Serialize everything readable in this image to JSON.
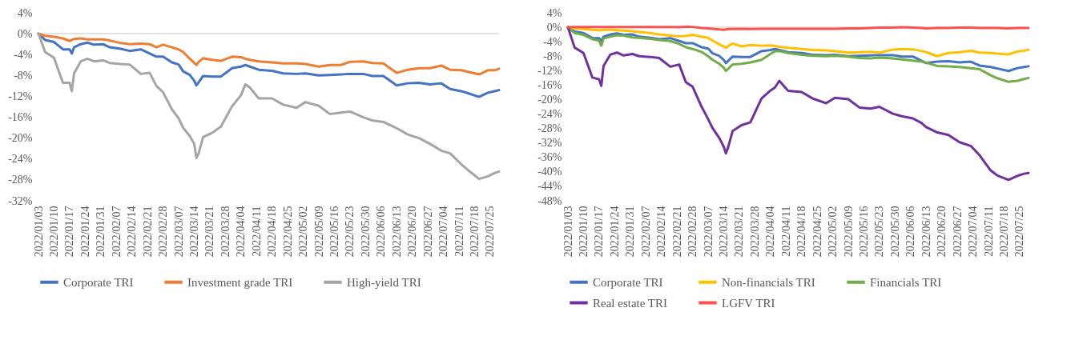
{
  "chart_data": [
    {
      "type": "line",
      "x": [
        "2022-01-03",
        "2022-01-06",
        "2022-01-10",
        "2022-01-14",
        "2022-01-17",
        "2022-01-18",
        "2022-01-19",
        "2022-01-22",
        "2022-01-25",
        "2022-01-28",
        "2022-02-01",
        "2022-02-04",
        "2022-02-09",
        "2022-02-13",
        "2022-02-18",
        "2022-02-22",
        "2022-02-25",
        "2022-02-28",
        "2022-03-04",
        "2022-03-07",
        "2022-03-09",
        "2022-03-12",
        "2022-03-14",
        "2022-03-15",
        "2022-03-16",
        "2022-03-18",
        "2022-03-22",
        "2022-03-26",
        "2022-03-31",
        "2022-04-04",
        "2022-04-06",
        "2022-04-08",
        "2022-04-12",
        "2022-04-18",
        "2022-04-23",
        "2022-04-29",
        "2022-05-03",
        "2022-05-09",
        "2022-05-14",
        "2022-05-19",
        "2022-05-23",
        "2022-05-29",
        "2022-06-02",
        "2022-06-07",
        "2022-06-11",
        "2022-06-13",
        "2022-06-18",
        "2022-06-23",
        "2022-06-28",
        "2022-07-03",
        "2022-07-07",
        "2022-07-12",
        "2022-07-15",
        "2022-07-20",
        "2022-07-24",
        "2022-07-27",
        "2022-07-29"
      ],
      "xlim": [
        "2022-01-03",
        "2022-07-29"
      ],
      "xticks": [
        {
          "value": "2022-01-03",
          "label": "2022/01/03"
        },
        {
          "value": "2022-01-10",
          "label": "2022/01/10"
        },
        {
          "value": "2022-01-17",
          "label": "2022/01/17"
        },
        {
          "value": "2022-01-24",
          "label": "2022/01/24"
        },
        {
          "value": "2022-01-31",
          "label": "2022/01/31"
        },
        {
          "value": "2022-02-07",
          "label": "2022/02/07"
        },
        {
          "value": "2022-02-14",
          "label": "2022/02/14"
        },
        {
          "value": "2022-02-21",
          "label": "2022/02/21"
        },
        {
          "value": "2022-02-28",
          "label": "2022/02/28"
        },
        {
          "value": "2022-03-07",
          "label": "2022/03/07"
        },
        {
          "value": "2022-03-14",
          "label": "2022/03/14"
        },
        {
          "value": "2022-03-21",
          "label": "2022/03/21"
        },
        {
          "value": "2022-03-28",
          "label": "2022/03/28"
        },
        {
          "value": "2022-04-04",
          "label": "2022/04/04"
        },
        {
          "value": "2022-04-11",
          "label": "2022/04/11"
        },
        {
          "value": "2022-04-18",
          "label": "2022/04/18"
        },
        {
          "value": "2022-04-25",
          "label": "2022/04/25"
        },
        {
          "value": "2022-05-02",
          "label": "2022/05/02"
        },
        {
          "value": "2022-05-09",
          "label": "2022/05/09"
        },
        {
          "value": "2022-05-16",
          "label": "2022/05/16"
        },
        {
          "value": "2022-05-23",
          "label": "2022/05/23"
        },
        {
          "value": "2022-05-30",
          "label": "2022/05/30"
        },
        {
          "value": "2022-06-06",
          "label": "2022/06/06"
        },
        {
          "value": "2022-06-13",
          "label": "2022/06/13"
        },
        {
          "value": "2022-06-20",
          "label": "2022/06/20"
        },
        {
          "value": "2022-06-27",
          "label": "2022/06/27"
        },
        {
          "value": "2022-07-04",
          "label": "2022/07/04"
        },
        {
          "value": "2022-07-11",
          "label": "2022/07/11"
        },
        {
          "value": "2022-07-18",
          "label": "2022/07/18"
        },
        {
          "value": "2022-07-25",
          "label": "2022/07/25"
        }
      ],
      "ylim": [
        -32,
        4
      ],
      "yticks": [
        {
          "value": -32,
          "label": "-32%"
        },
        {
          "value": -28,
          "label": "-28%"
        },
        {
          "value": -24,
          "label": "-24%"
        },
        {
          "value": -20,
          "label": "-20%"
        },
        {
          "value": -16,
          "label": "-16%"
        },
        {
          "value": -12,
          "label": "-12%"
        },
        {
          "value": -8,
          "label": "-8%"
        },
        {
          "value": -4,
          "label": "-4%"
        },
        {
          "value": 0,
          "label": "0%"
        },
        {
          "value": 4,
          "label": "4%"
        }
      ],
      "ref_lines": [
        {
          "axis": "y",
          "value": 0,
          "color": "#d9d9d9"
        }
      ],
      "legend": "bottom",
      "grid": false,
      "series": [
        {
          "name": "Corporate TRI",
          "color": "#4472c4",
          "values": [
            0,
            -1.2,
            -1.6,
            -3.0,
            -3.0,
            -3.8,
            -2.6,
            -2.0,
            -1.7,
            -2.1,
            -2.0,
            -2.6,
            -2.9,
            -3.3,
            -3.0,
            -3.8,
            -4.4,
            -4.4,
            -5.5,
            -5.9,
            -7.2,
            -7.9,
            -9.0,
            -9.9,
            -9.3,
            -8.1,
            -8.2,
            -8.2,
            -6.6,
            -6.3,
            -6.0,
            -6.3,
            -6.9,
            -7.1,
            -7.6,
            -7.7,
            -7.6,
            -8.0,
            -7.9,
            -7.8,
            -7.7,
            -7.7,
            -8.1,
            -8.1,
            -9.3,
            -9.9,
            -9.5,
            -9.4,
            -9.7,
            -9.5,
            -10.6,
            -11.0,
            -11.4,
            -12.1,
            -11.3,
            -11.0,
            -10.8
          ]
        },
        {
          "name": "Investment grade TRI",
          "color": "#ed7d31",
          "values": [
            0,
            -0.4,
            -0.6,
            -0.9,
            -1.4,
            -1.2,
            -1.0,
            -0.9,
            -1.1,
            -1.1,
            -1.1,
            -1.3,
            -1.8,
            -2.0,
            -1.9,
            -2.0,
            -2.6,
            -2.1,
            -2.6,
            -3.0,
            -3.5,
            -4.8,
            -5.6,
            -6.0,
            -5.4,
            -4.7,
            -5.0,
            -5.2,
            -4.4,
            -4.5,
            -4.8,
            -5.0,
            -5.3,
            -5.5,
            -5.7,
            -5.7,
            -5.8,
            -6.3,
            -6.0,
            -6.0,
            -5.4,
            -5.3,
            -5.6,
            -5.7,
            -6.9,
            -7.5,
            -6.9,
            -6.6,
            -6.6,
            -6.1,
            -6.9,
            -7.0,
            -7.3,
            -7.8,
            -7.0,
            -7.0,
            -6.7
          ]
        },
        {
          "name": "High-yield TRI",
          "color": "#a5a5a5",
          "values": [
            0,
            -3.5,
            -4.6,
            -9.4,
            -9.4,
            -11.0,
            -7.6,
            -5.3,
            -4.8,
            -5.3,
            -5.1,
            -5.6,
            -5.8,
            -5.9,
            -7.7,
            -7.5,
            -10.0,
            -11.2,
            -14.5,
            -16.2,
            -18.0,
            -19.6,
            -21.1,
            -23.8,
            -22.9,
            -19.8,
            -19.0,
            -17.8,
            -13.9,
            -11.8,
            -9.7,
            -10.3,
            -12.4,
            -12.4,
            -13.6,
            -14.2,
            -13.1,
            -13.8,
            -15.4,
            -15.1,
            -14.9,
            -16.0,
            -16.6,
            -16.9,
            -17.7,
            -18.1,
            -19.3,
            -20.0,
            -21.1,
            -22.4,
            -22.9,
            -25.0,
            -26.1,
            -27.8,
            -27.3,
            -26.7,
            -26.4
          ]
        }
      ]
    },
    {
      "type": "line",
      "x": [
        "2022-01-03",
        "2022-01-06",
        "2022-01-10",
        "2022-01-14",
        "2022-01-17",
        "2022-01-18",
        "2022-01-19",
        "2022-01-22",
        "2022-01-25",
        "2022-01-28",
        "2022-02-01",
        "2022-02-04",
        "2022-02-09",
        "2022-02-13",
        "2022-02-18",
        "2022-02-22",
        "2022-02-25",
        "2022-02-28",
        "2022-03-04",
        "2022-03-07",
        "2022-03-09",
        "2022-03-12",
        "2022-03-14",
        "2022-03-15",
        "2022-03-16",
        "2022-03-18",
        "2022-03-22",
        "2022-03-26",
        "2022-03-31",
        "2022-04-04",
        "2022-04-06",
        "2022-04-08",
        "2022-04-12",
        "2022-04-18",
        "2022-04-23",
        "2022-04-29",
        "2022-05-03",
        "2022-05-09",
        "2022-05-14",
        "2022-05-19",
        "2022-05-23",
        "2022-05-29",
        "2022-06-02",
        "2022-06-07",
        "2022-06-11",
        "2022-06-13",
        "2022-06-18",
        "2022-06-23",
        "2022-06-28",
        "2022-07-03",
        "2022-07-07",
        "2022-07-12",
        "2022-07-15",
        "2022-07-20",
        "2022-07-24",
        "2022-07-27",
        "2022-07-29"
      ],
      "xlim": [
        "2022-01-03",
        "2022-07-29"
      ],
      "xticks": [
        {
          "value": "2022-01-03",
          "label": "2022/01/03"
        },
        {
          "value": "2022-01-10",
          "label": "2022/01/10"
        },
        {
          "value": "2022-01-17",
          "label": "2022/01/17"
        },
        {
          "value": "2022-01-24",
          "label": "2022/01/24"
        },
        {
          "value": "2022-01-31",
          "label": "2022/01/31"
        },
        {
          "value": "2022-02-07",
          "label": "2022/02/07"
        },
        {
          "value": "2022-02-14",
          "label": "2022/02/14"
        },
        {
          "value": "2022-02-21",
          "label": "2022/02/21"
        },
        {
          "value": "2022-02-28",
          "label": "2022/02/28"
        },
        {
          "value": "2022-03-07",
          "label": "2022/03/07"
        },
        {
          "value": "2022-03-14",
          "label": "2022/03/14"
        },
        {
          "value": "2022-03-21",
          "label": "2022/03/21"
        },
        {
          "value": "2022-03-28",
          "label": "2022/03/28"
        },
        {
          "value": "2022-04-04",
          "label": "2022/04/04"
        },
        {
          "value": "2022-04-11",
          "label": "2022/04/11"
        },
        {
          "value": "2022-04-18",
          "label": "2022/04/18"
        },
        {
          "value": "2022-04-25",
          "label": "2022/04/25"
        },
        {
          "value": "2022-05-02",
          "label": "2022/05/02"
        },
        {
          "value": "2022-05-09",
          "label": "2022/05/09"
        },
        {
          "value": "2022-05-16",
          "label": "2022/05/16"
        },
        {
          "value": "2022-05-23",
          "label": "2022/05/23"
        },
        {
          "value": "2022-05-30",
          "label": "2022/05/30"
        },
        {
          "value": "2022-06-06",
          "label": "2022/06/06"
        },
        {
          "value": "2022-06-13",
          "label": "2022/06/13"
        },
        {
          "value": "2022-06-20",
          "label": "2022/06/20"
        },
        {
          "value": "2022-06-27",
          "label": "2022/06/27"
        },
        {
          "value": "2022-07-04",
          "label": "2022/07/04"
        },
        {
          "value": "2022-07-11",
          "label": "2022/07/11"
        },
        {
          "value": "2022-07-18",
          "label": "2022/07/18"
        },
        {
          "value": "2022-07-25",
          "label": "2022/07/25"
        }
      ],
      "ylim": [
        -48,
        4
      ],
      "yticks": [
        {
          "value": -48,
          "label": "-48%"
        },
        {
          "value": -44,
          "label": "-44%"
        },
        {
          "value": -40,
          "label": "-40%"
        },
        {
          "value": -36,
          "label": "-36%"
        },
        {
          "value": -32,
          "label": "-32%"
        },
        {
          "value": -28,
          "label": "-28%"
        },
        {
          "value": -24,
          "label": "-24%"
        },
        {
          "value": -20,
          "label": "-20%"
        },
        {
          "value": -16,
          "label": "-16%"
        },
        {
          "value": -12,
          "label": "-12%"
        },
        {
          "value": -8,
          "label": "-8%"
        },
        {
          "value": -4,
          "label": "-4%"
        },
        {
          "value": 0,
          "label": "0%"
        },
        {
          "value": 4,
          "label": "4%"
        }
      ],
      "ref_lines": [
        {
          "axis": "y",
          "value": 0,
          "color": "#d9d9d9"
        }
      ],
      "legend": "bottom",
      "grid": false,
      "series": [
        {
          "name": "Corporate TRI",
          "color": "#4472c4",
          "values": [
            0,
            -1.2,
            -1.6,
            -3.0,
            -3.0,
            -3.8,
            -2.6,
            -2.0,
            -1.7,
            -2.1,
            -2.0,
            -2.6,
            -2.9,
            -3.3,
            -3.0,
            -3.8,
            -4.4,
            -4.4,
            -5.5,
            -5.9,
            -7.2,
            -7.9,
            -9.0,
            -9.9,
            -9.3,
            -8.1,
            -8.2,
            -8.2,
            -6.6,
            -6.3,
            -6.0,
            -6.3,
            -6.9,
            -7.1,
            -7.6,
            -7.7,
            -7.6,
            -8.0,
            -7.9,
            -7.8,
            -7.7,
            -7.7,
            -8.1,
            -8.1,
            -9.3,
            -9.9,
            -9.5,
            -9.4,
            -9.7,
            -9.5,
            -10.6,
            -11.0,
            -11.4,
            -12.1,
            -11.3,
            -11.0,
            -10.8
          ]
        },
        {
          "name": "Non-financials TRI",
          "color": "#ffc000",
          "values": [
            0,
            -0.3,
            -0.5,
            -0.7,
            -0.8,
            -0.8,
            -0.7,
            -0.7,
            -0.8,
            -0.9,
            -1.1,
            -1.3,
            -1.6,
            -2.0,
            -2.3,
            -2.5,
            -2.4,
            -2.1,
            -2.6,
            -2.9,
            -3.7,
            -4.7,
            -5.3,
            -5.7,
            -5.2,
            -4.5,
            -5.3,
            -4.9,
            -5.1,
            -5.0,
            -5.2,
            -5.4,
            -5.7,
            -6.0,
            -6.3,
            -6.4,
            -6.6,
            -7.0,
            -6.9,
            -6.8,
            -7.0,
            -6.2,
            -6.0,
            -6.1,
            -6.6,
            -6.9,
            -8.0,
            -7.1,
            -6.9,
            -6.5,
            -7.0,
            -7.1,
            -7.3,
            -7.5,
            -6.7,
            -6.5,
            -6.2
          ]
        },
        {
          "name": "Financials TRI",
          "color": "#70ad47",
          "values": [
            0,
            -1.6,
            -2.1,
            -3.3,
            -3.7,
            -5.1,
            -3.1,
            -2.6,
            -2.2,
            -2.3,
            -2.8,
            -2.9,
            -3.2,
            -3.5,
            -3.8,
            -4.6,
            -5.5,
            -6.0,
            -6.8,
            -8.0,
            -9.0,
            -10.1,
            -11.2,
            -12.1,
            -11.5,
            -10.3,
            -10.1,
            -9.7,
            -9.0,
            -7.4,
            -6.6,
            -6.6,
            -7.1,
            -7.6,
            -7.9,
            -8.0,
            -7.9,
            -8.1,
            -8.5,
            -8.6,
            -8.4,
            -8.6,
            -8.9,
            -9.2,
            -9.5,
            -9.8,
            -10.7,
            -10.8,
            -11.0,
            -11.3,
            -11.6,
            -13.3,
            -14.1,
            -15.1,
            -14.8,
            -14.3,
            -14.0
          ]
        },
        {
          "name": "Real estate TRI",
          "color": "#7030a0",
          "values": [
            0,
            -5.6,
            -7.1,
            -13.9,
            -14.4,
            -16.2,
            -10.7,
            -7.6,
            -7.0,
            -7.8,
            -7.4,
            -8.0,
            -8.2,
            -8.5,
            -10.9,
            -10.3,
            -15.2,
            -16.4,
            -21.9,
            -25.4,
            -27.9,
            -30.6,
            -33.0,
            -34.9,
            -33.2,
            -28.7,
            -27.1,
            -26.3,
            -19.7,
            -17.5,
            -16.7,
            -14.8,
            -17.6,
            -17.9,
            -19.7,
            -21.0,
            -19.5,
            -19.9,
            -22.2,
            -22.5,
            -22.0,
            -23.9,
            -24.6,
            -25.2,
            -26.5,
            -27.6,
            -29.1,
            -29.8,
            -31.8,
            -32.8,
            -35.4,
            -39.6,
            -41.0,
            -42.2,
            -41.1,
            -40.5,
            -40.3
          ]
        },
        {
          "name": "LGFV TRI",
          "color": "#ff5050",
          "values": [
            0,
            0.1,
            0.1,
            0.1,
            0.1,
            0.1,
            0.1,
            0.1,
            0.1,
            0.1,
            0.1,
            0.1,
            0.1,
            0.1,
            0.1,
            0.0,
            0.2,
            0.1,
            -0.2,
            -0.3,
            -0.4,
            -0.6,
            -0.7,
            -0.6,
            -0.5,
            -0.5,
            -0.4,
            -0.5,
            -0.4,
            -0.4,
            -0.4,
            -0.4,
            -0.4,
            -0.4,
            -0.4,
            -0.4,
            -0.4,
            -0.3,
            -0.3,
            -0.2,
            -0.1,
            -0.1,
            0.0,
            -0.1,
            -0.2,
            -0.3,
            -0.2,
            -0.2,
            -0.1,
            -0.1,
            -0.2,
            -0.2,
            -0.2,
            -0.3,
            -0.2,
            -0.2,
            -0.2
          ]
        }
      ]
    }
  ]
}
